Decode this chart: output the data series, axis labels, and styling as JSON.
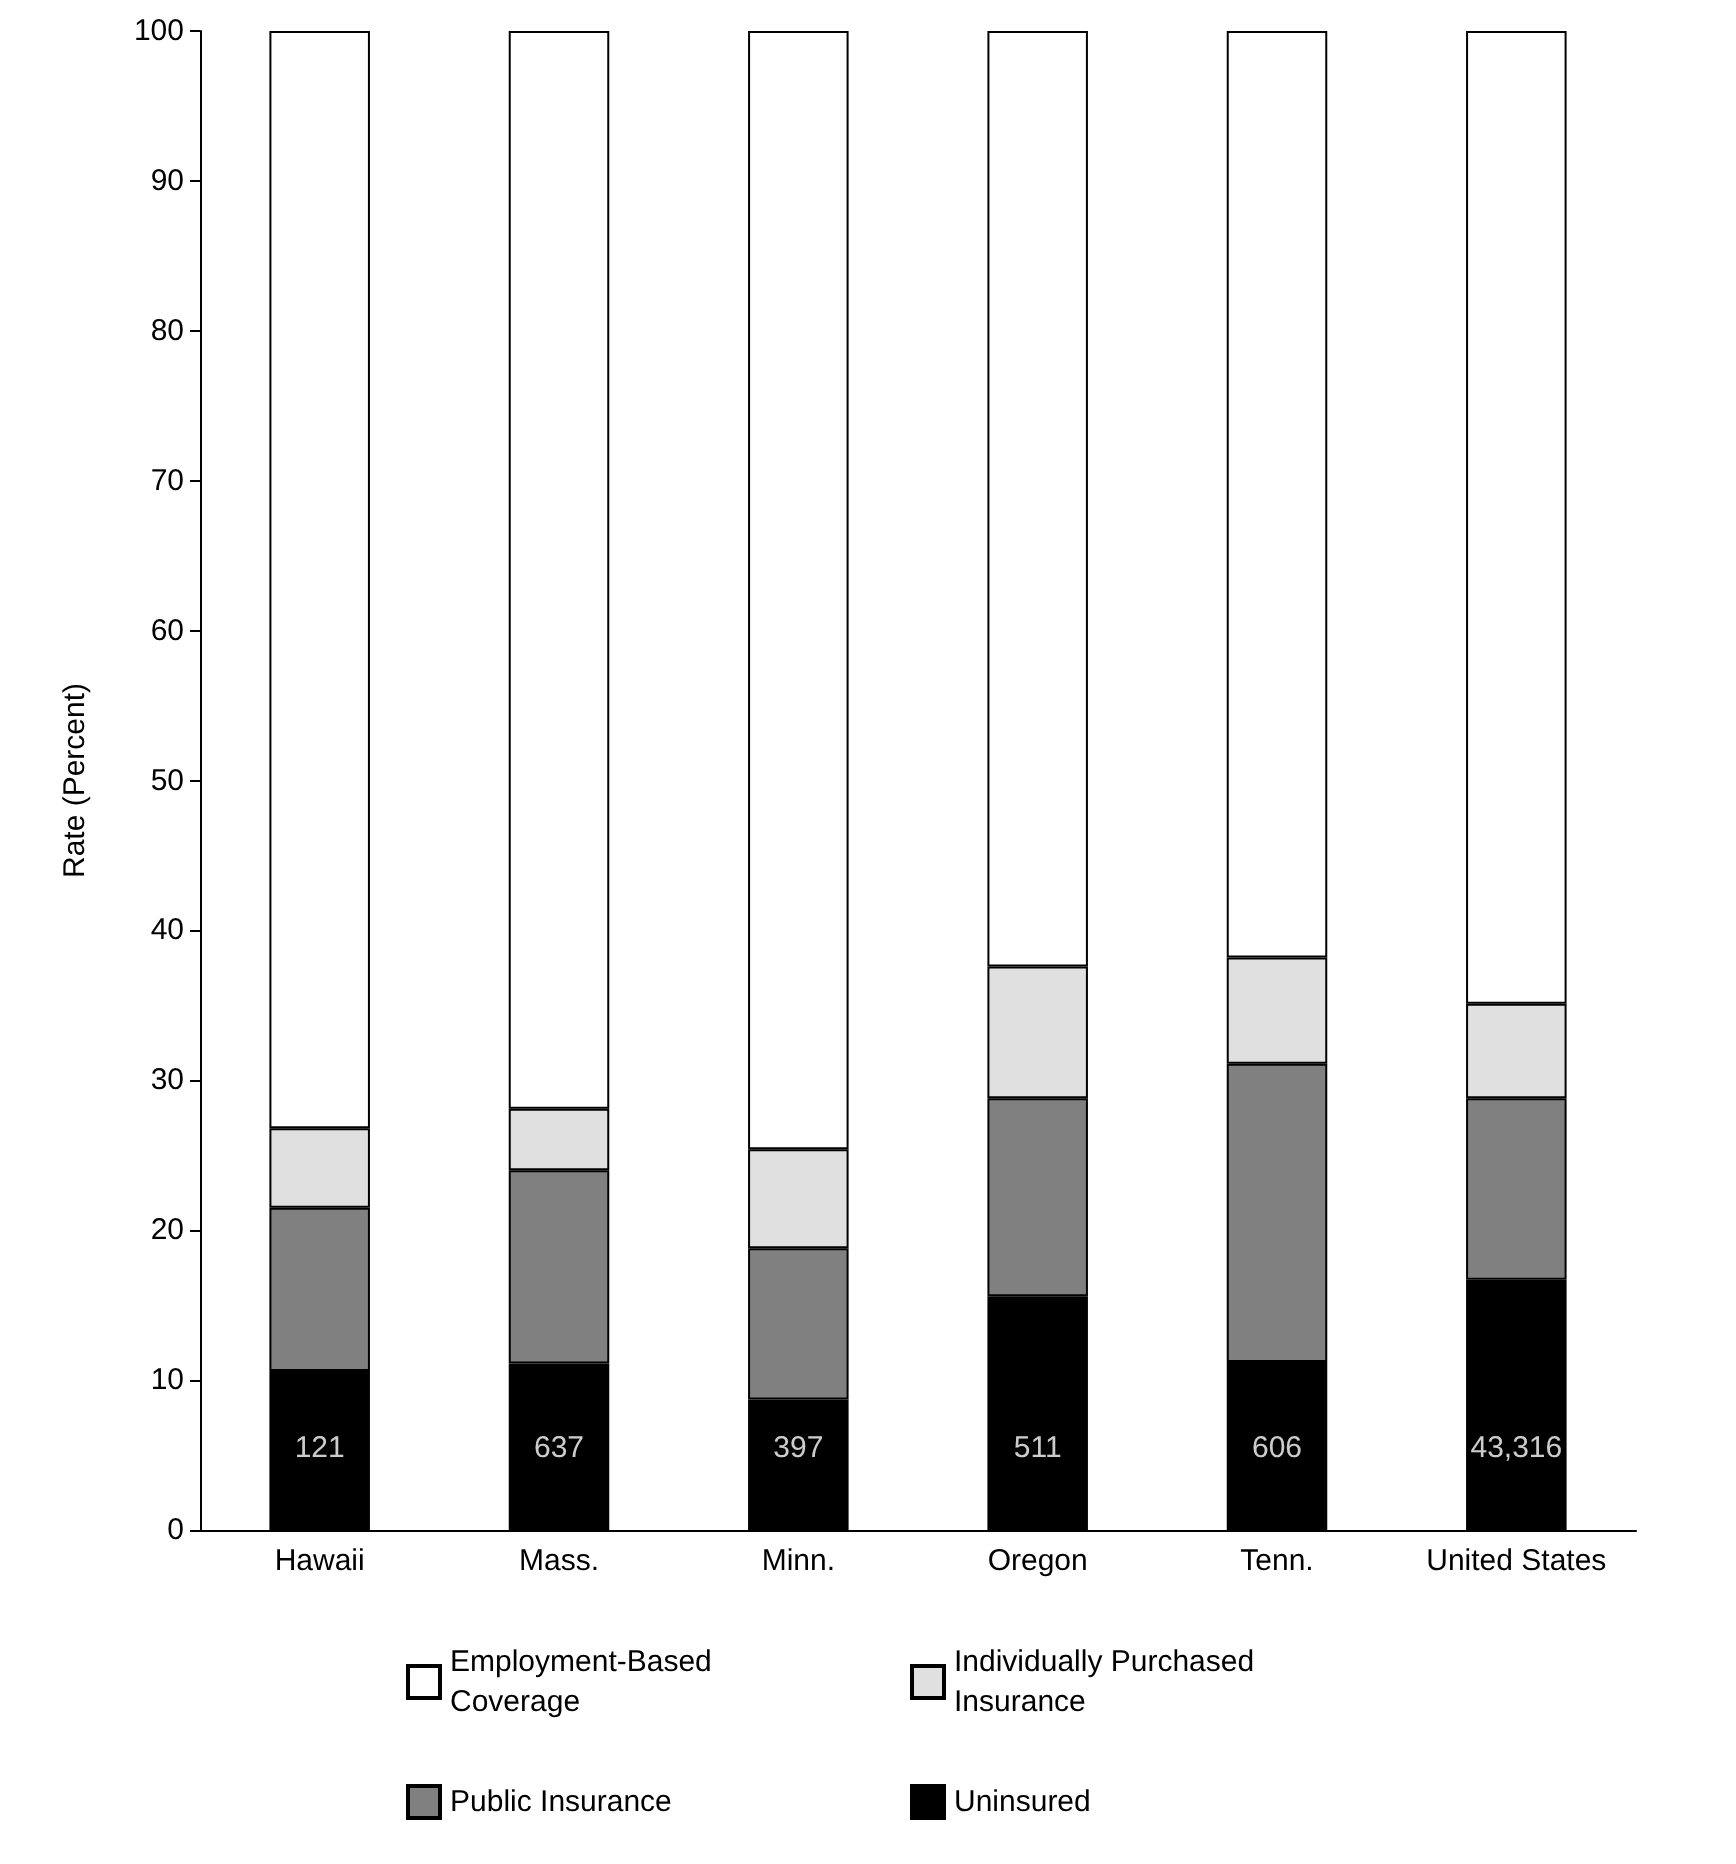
{
  "chart_data": {
    "type": "bar",
    "stacked": true,
    "ylabel": "Rate (Percent)",
    "categories": [
      "Hawaii",
      "Mass.",
      "Minn.",
      "Oregon",
      "Tenn.",
      "United States"
    ],
    "series": [
      {
        "name": "Uninsured",
        "color": "#000000",
        "values": [
          10.6,
          11.1,
          8.7,
          15.6,
          11.2,
          16.7
        ]
      },
      {
        "name": "Public Insurance",
        "color": "#808080",
        "values": [
          10.9,
          12.9,
          10.1,
          13.2,
          19.9,
          12.1
        ]
      },
      {
        "name": "Individually Purchased Insurance",
        "color": "#e0e0e0",
        "values": [
          5.3,
          4.1,
          6.6,
          8.8,
          7.1,
          6.3
        ]
      },
      {
        "name": "Employment-Based Coverage",
        "color": "#ffffff",
        "values": [
          73.2,
          71.9,
          74.6,
          62.4,
          61.8,
          64.9
        ]
      }
    ],
    "annotations": [
      "121",
      "637",
      "397",
      "511",
      "606",
      "43,316"
    ],
    "ylim": [
      0,
      100
    ],
    "yticks": [
      0,
      10,
      20,
      30,
      40,
      50,
      60,
      70,
      80,
      90,
      100
    ],
    "grid": false,
    "legend": "bottom"
  }
}
